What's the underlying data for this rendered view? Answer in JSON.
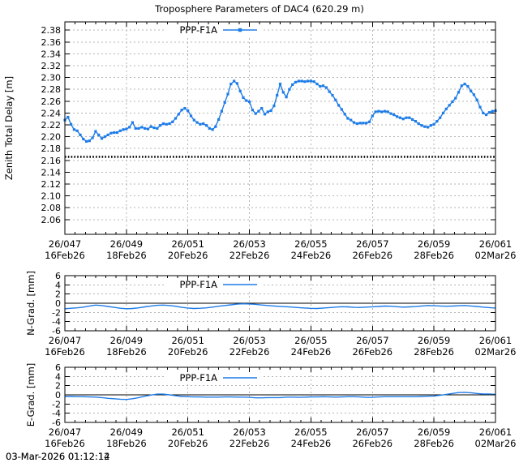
{
  "title": "Troposphere Parameters of DAC4 (620.29 m)",
  "timestamp_overlay": [
    "03-Mar-2026 01:12:12",
    "03-Mar-2026 01:12:14"
  ],
  "colors": {
    "series": "#1e7ce8",
    "grid": "#b4b4b4",
    "axis": "#000000",
    "apriori": "#000000",
    "background": "#ffffff"
  },
  "x_axis": {
    "range": [
      47,
      61
    ],
    "major_ticks": [
      47,
      49,
      51,
      53,
      55,
      57,
      59,
      61
    ],
    "labels_line1": [
      "26/047",
      "26/049",
      "26/051",
      "26/053",
      "26/055",
      "26/057",
      "26/059",
      "26/061"
    ],
    "labels_line2": [
      "16Feb26",
      "18Feb26",
      "20Feb26",
      "22Feb26",
      "24Feb26",
      "26Feb26",
      "28Feb26",
      "02Mar26"
    ]
  },
  "legend_label": "PPP-F1A",
  "chart_data": [
    {
      "type": "line",
      "name": "zenith-total-delay",
      "ylabel": "Zenith Total Delay [m]",
      "ylim": [
        2.035,
        2.394
      ],
      "yticks": [
        2.06,
        2.08,
        2.1,
        2.12,
        2.14,
        2.16,
        2.18,
        2.2,
        2.22,
        2.24,
        2.26,
        2.28,
        2.3,
        2.32,
        2.34,
        2.36,
        2.38
      ],
      "legend": "PPP-F1A",
      "marker": true,
      "apriori_line": {
        "value": 2.166,
        "style": "black-dotted"
      },
      "x_start": 47.0,
      "x_step": 0.1,
      "values": [
        2.228,
        2.233,
        2.221,
        2.212,
        2.21,
        2.203,
        2.196,
        2.192,
        2.193,
        2.198,
        2.209,
        2.203,
        2.197,
        2.2,
        2.203,
        2.206,
        2.207,
        2.207,
        2.21,
        2.212,
        2.213,
        2.216,
        2.224,
        2.214,
        2.214,
        2.216,
        2.214,
        2.213,
        2.217,
        2.215,
        2.214,
        2.219,
        2.222,
        2.221,
        2.222,
        2.225,
        2.231,
        2.238,
        2.245,
        2.248,
        2.244,
        2.235,
        2.228,
        2.224,
        2.221,
        2.222,
        2.219,
        2.214,
        2.212,
        2.217,
        2.229,
        2.243,
        2.258,
        2.272,
        2.289,
        2.294,
        2.29,
        2.277,
        2.266,
        2.261,
        2.259,
        2.245,
        2.239,
        2.243,
        2.248,
        2.238,
        2.242,
        2.244,
        2.252,
        2.27,
        2.289,
        2.275,
        2.267,
        2.28,
        2.288,
        2.292,
        2.294,
        2.294,
        2.293,
        2.294,
        2.294,
        2.293,
        2.289,
        2.285,
        2.286,
        2.283,
        2.276,
        2.27,
        2.262,
        2.253,
        2.246,
        2.238,
        2.231,
        2.228,
        2.224,
        2.222,
        2.223,
        2.223,
        2.223,
        2.225,
        2.235,
        2.242,
        2.243,
        2.242,
        2.243,
        2.242,
        2.239,
        2.237,
        2.234,
        2.232,
        2.23,
        2.232,
        2.232,
        2.229,
        2.226,
        2.222,
        2.219,
        2.217,
        2.216,
        2.219,
        2.221,
        2.226,
        2.232,
        2.24,
        2.247,
        2.253,
        2.259,
        2.265,
        2.275,
        2.286,
        2.289,
        2.285,
        2.277,
        2.271,
        2.262,
        2.25,
        2.24,
        2.237,
        2.241,
        2.243,
        2.244
      ]
    },
    {
      "type": "line",
      "name": "north-gradient",
      "ylabel": "N-Grad. [mm]",
      "ylim": [
        -6,
        6
      ],
      "yticks": [
        -6,
        -4,
        -2,
        0,
        2,
        4,
        6
      ],
      "legend": "PPP-F1A",
      "marker": false,
      "zero_line": true,
      "x_start": 47.0,
      "x_step": 0.2,
      "values": [
        -1.2,
        -1.1,
        -1.0,
        -0.85,
        -0.6,
        -0.4,
        -0.5,
        -0.7,
        -0.9,
        -1.1,
        -1.2,
        -1.15,
        -1.0,
        -0.8,
        -0.6,
        -0.45,
        -0.4,
        -0.5,
        -0.65,
        -0.9,
        -1.05,
        -1.15,
        -1.1,
        -1.0,
        -0.85,
        -0.65,
        -0.5,
        -0.35,
        -0.2,
        -0.12,
        -0.15,
        -0.25,
        -0.38,
        -0.5,
        -0.6,
        -0.68,
        -0.75,
        -0.85,
        -0.95,
        -1.05,
        -1.12,
        -1.15,
        -1.05,
        -0.95,
        -0.85,
        -0.75,
        -0.8,
        -0.9,
        -0.92,
        -0.85,
        -0.78,
        -0.7,
        -0.62,
        -0.65,
        -0.75,
        -0.85,
        -0.8,
        -0.72,
        -0.6,
        -0.5,
        -0.55,
        -0.6,
        -0.65,
        -0.62,
        -0.55,
        -0.5,
        -0.6,
        -0.7,
        -0.85,
        -0.95,
        -1.05
      ]
    },
    {
      "type": "line",
      "name": "east-gradient",
      "ylabel": "E-Grad. [mm]",
      "ylim": [
        -6,
        6
      ],
      "yticks": [
        -6,
        -4,
        -2,
        0,
        2,
        4,
        6
      ],
      "legend": "PPP-F1A",
      "marker": false,
      "zero_line": true,
      "x_start": 47.0,
      "x_step": 0.2,
      "values": [
        -0.35,
        -0.35,
        -0.4,
        -0.4,
        -0.45,
        -0.5,
        -0.6,
        -0.75,
        -0.85,
        -0.95,
        -1.0,
        -0.85,
        -0.6,
        -0.3,
        -0.05,
        0.15,
        0.15,
        0.0,
        -0.2,
        -0.35,
        -0.4,
        -0.45,
        -0.45,
        -0.5,
        -0.5,
        -0.5,
        -0.45,
        -0.45,
        -0.5,
        -0.5,
        -0.55,
        -0.65,
        -0.65,
        -0.6,
        -0.6,
        -0.6,
        -0.5,
        -0.5,
        -0.55,
        -0.5,
        -0.45,
        -0.45,
        -0.4,
        -0.45,
        -0.5,
        -0.45,
        -0.4,
        -0.4,
        -0.45,
        -0.55,
        -0.55,
        -0.45,
        -0.4,
        -0.4,
        -0.4,
        -0.4,
        -0.4,
        -0.4,
        -0.35,
        -0.3,
        -0.25,
        -0.1,
        0.1,
        0.3,
        0.5,
        0.55,
        0.45,
        0.3,
        0.2,
        0.2,
        0.1
      ]
    }
  ]
}
